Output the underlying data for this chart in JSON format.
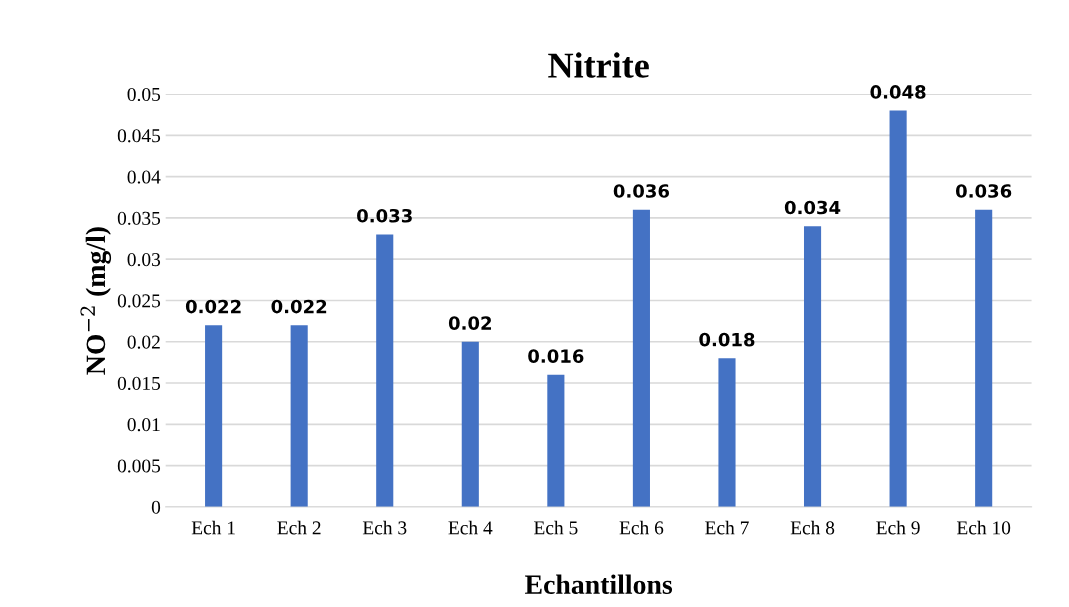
{
  "chart_data": {
    "type": "bar",
    "title": "Nitrite",
    "xlabel": "Echantillons",
    "ylabel": "NO$^{−2}$ (mg/l)",
    "categories": [
      "Ech 1",
      "Ech 2",
      "Ech 3",
      "Ech 4",
      "Ech 5",
      "Ech 6",
      "Ech 7",
      "Ech 8",
      "Ech 9",
      "Ech 10"
    ],
    "values": [
      0.022,
      0.022,
      0.033,
      0.02,
      0.016,
      0.036,
      0.018,
      0.034,
      0.048,
      0.036
    ],
    "color": "#4472c4",
    "ylim": [
      0,
      0.05
    ],
    "yticks": [
      0,
      0.005,
      0.01,
      0.015,
      0.02,
      0.025,
      0.03,
      0.035,
      0.04,
      0.045,
      0.05
    ],
    "grid": "y",
    "data_labels": true
  }
}
